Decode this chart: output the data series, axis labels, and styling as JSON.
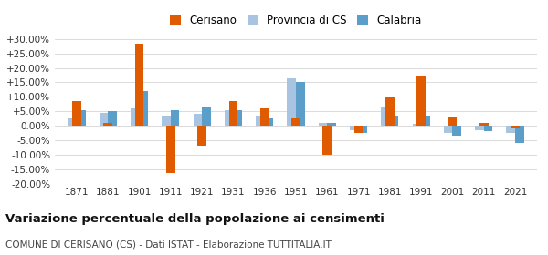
{
  "years": [
    1871,
    1881,
    1901,
    1911,
    1921,
    1931,
    1936,
    1951,
    1961,
    1971,
    1981,
    1991,
    2001,
    2011,
    2021
  ],
  "cerisano": [
    8.5,
    1.0,
    28.5,
    -16.5,
    -7.0,
    8.5,
    6.0,
    2.5,
    -10.0,
    -2.5,
    10.0,
    17.0,
    3.0,
    1.0,
    -1.0
  ],
  "provincia_cs": [
    2.5,
    4.5,
    6.0,
    3.5,
    4.0,
    5.5,
    3.5,
    16.5,
    1.0,
    -1.5,
    6.5,
    0.5,
    -2.5,
    -1.5,
    -2.5
  ],
  "calabria": [
    5.5,
    5.0,
    12.0,
    5.5,
    6.5,
    5.5,
    2.5,
    15.0,
    1.0,
    -2.5,
    3.5,
    3.5,
    -3.5,
    -2.0,
    -6.0
  ],
  "color_cerisano": "#e05a00",
  "color_provincia": "#a8c4e0",
  "color_calabria": "#5b9ec9",
  "title": "Variazione percentuale della popolazione ai censimenti",
  "subtitle": "COMUNE DI CERISANO (CS) - Dati ISTAT - Elaborazione TUTTITALIA.IT",
  "legend_labels": [
    "Cerisano",
    "Provincia di CS",
    "Calabria"
  ],
  "ylim": [
    -20,
    32
  ],
  "yticks": [
    -20,
    -15,
    -10,
    -5,
    0,
    5,
    10,
    15,
    20,
    25,
    30
  ],
  "background_color": "#ffffff"
}
